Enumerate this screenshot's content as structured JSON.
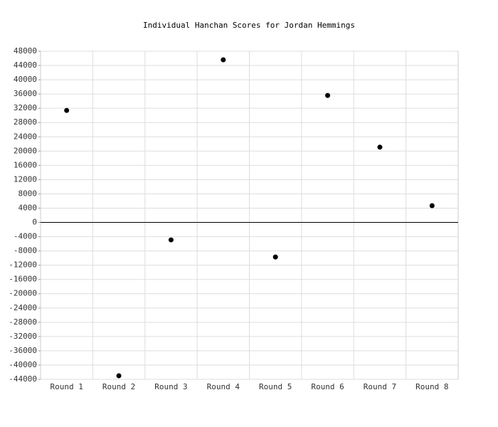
{
  "chart_data": {
    "type": "scatter",
    "title": "Individual Hanchan Scores for Jordan Hemmings",
    "categories": [
      "Round 1",
      "Round 2",
      "Round 3",
      "Round 4",
      "Round 5",
      "Round 6",
      "Round 7",
      "Round 8"
    ],
    "values": [
      31400,
      -43000,
      -4900,
      45600,
      -9700,
      35600,
      21100,
      4700
    ],
    "color": "#000000",
    "ylim": [
      -44000,
      48000
    ],
    "yticks": [
      -44000,
      -40000,
      -36000,
      -32000,
      -28000,
      -24000,
      -20000,
      -16000,
      -12000,
      -8000,
      -4000,
      0,
      4000,
      8000,
      12000,
      16000,
      20000,
      24000,
      28000,
      32000,
      36000,
      40000,
      44000,
      48000
    ],
    "grid": true
  }
}
